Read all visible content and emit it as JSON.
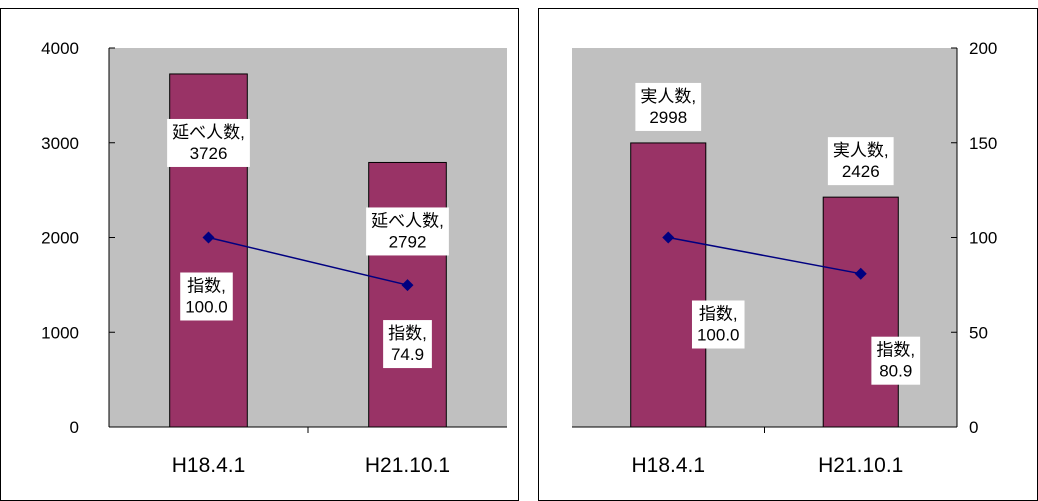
{
  "chart_data": [
    {
      "type": "bar",
      "y_axis_side": "left",
      "categories": [
        "H18.4.1",
        "H21.10.1"
      ],
      "ylim": [
        0,
        4000
      ],
      "yticks": [
        0,
        1000,
        2000,
        3000,
        4000
      ],
      "grid": false,
      "series": [
        {
          "name": "延べ人数",
          "type": "bar",
          "values": [
            3726,
            2792
          ],
          "color": "#993366",
          "labels": [
            [
              "延べ人数,",
              "3726"
            ],
            [
              "延べ人数,",
              "2792"
            ]
          ]
        },
        {
          "name": "指数",
          "type": "line",
          "values": [
            100.0,
            74.9
          ],
          "color": "#000080",
          "axis": "secondary",
          "labels": [
            [
              "指数,",
              "100.0"
            ],
            [
              "指数,",
              "74.9"
            ]
          ]
        }
      ],
      "secondary_ylim": [
        0,
        200
      ]
    },
    {
      "type": "bar",
      "y_axis_side": "right",
      "categories": [
        "H18.4.1",
        "H21.10.1"
      ],
      "ylim": [
        0,
        200
      ],
      "yticks": [
        0,
        50,
        100,
        150,
        200
      ],
      "grid": false,
      "series": [
        {
          "name": "実人数",
          "type": "bar",
          "values": [
            2998,
            2426
          ],
          "color": "#993366",
          "axis": "hidden",
          "labels": [
            [
              "実人数,",
              "2998"
            ],
            [
              "実人数,",
              "2426"
            ]
          ]
        },
        {
          "name": "指数",
          "type": "line",
          "values": [
            100.0,
            80.9
          ],
          "color": "#000080",
          "labels": [
            [
              "指数,",
              "100.0"
            ],
            [
              "指数,",
              "80.9"
            ]
          ]
        }
      ],
      "hidden_ylim": [
        0,
        4000
      ]
    }
  ],
  "colors": {
    "plot_bg": "#c0c0c0",
    "bar": "#993366",
    "line": "#000080"
  }
}
